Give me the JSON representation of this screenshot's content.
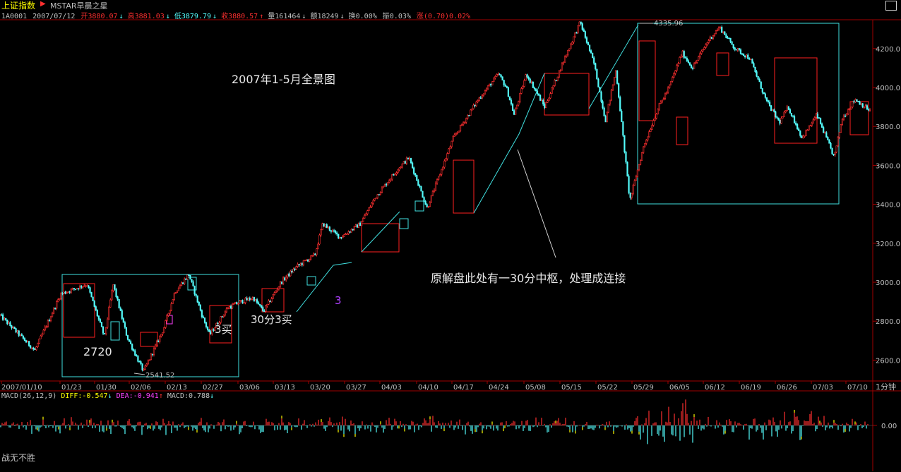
{
  "header": {
    "title": "上证指数",
    "subtitle": "MSTAR早晨之星",
    "arrow_icon": "play-right-icon"
  },
  "quote": {
    "code": "1A0001",
    "date": "2007/07/12",
    "open": "开3880.07",
    "high": "高3881.03",
    "low": "低3879.79",
    "close": "收3880.57",
    "volume": "量161464",
    "amount": "额18249",
    "turnover": "换0.00%",
    "amplitude": "振0.03%",
    "change": "涨(0.70)0.02%"
  },
  "macd_legend": {
    "name": "MACD(26,12,9)",
    "diff": "DIFF:-0.547",
    "dea": "DEA:-0.941",
    "macd": "MACD:0.788"
  },
  "footer": {
    "label": "战无不胜"
  },
  "colors": {
    "background": "#000000",
    "up": "#ff3030",
    "down": "#54fcfc",
    "axis": "#a00000",
    "box_red": "#ff2020",
    "box_cyan": "#40e0e0",
    "text": "#c0c0c0",
    "yellow": "#ffff00",
    "magenta": "#ff40ff"
  },
  "chart_data": [
    {
      "type": "candlestick-line",
      "title": "2007年1-5月全景图",
      "x_ticks": [
        "2007/01/10",
        "01/23",
        "01/30",
        "02/06",
        "02/13",
        "02/27",
        "03/06",
        "03/13",
        "03/20",
        "03/27",
        "04/03",
        "04/10",
        "04/17",
        "04/24",
        "05/08",
        "05/15",
        "05/22",
        "05/29",
        "06/05",
        "06/12",
        "06/19",
        "06/26",
        "07/03",
        "07/10"
      ],
      "x_unit_label": "1分钟",
      "y_ticks": [
        "4200.0",
        "4000.0",
        "3800.0",
        "3600.0",
        "3400.0",
        "3200.0",
        "3000.0",
        "2800.0",
        "2600.0"
      ],
      "y_tick_values": [
        4200,
        4000,
        3800,
        3600,
        3400,
        3200,
        3000,
        2800,
        2600
      ],
      "ylim": [
        2530,
        4330
      ],
      "grid": false,
      "price_path": {
        "x": [
          0,
          4,
          7,
          10,
          12,
          13,
          14.6,
          16.5,
          18.8,
          20.1,
          21.7,
          23.3,
          24.1,
          26.2,
          27.7,
          29.1,
          30.3,
          32.3,
          34.1,
          36.2,
          37.1,
          39.1,
          41.4,
          43.2,
          45.7,
          47.0,
          49.1,
          52.1,
          55.0,
          57.3,
          58.2,
          59.1,
          60.5,
          62.6,
          65.0,
          66.7,
          68.3,
          69.6,
          70.8,
          72.4,
          74.0,
          75.7,
          76.9,
          78.4,
          79.6,
          81.4,
          82.7,
          84.5,
          86.2,
          88.1,
          89.6,
          90.6,
          92.2,
          93.9,
          95.9,
          96.8,
          98.3,
          100.0
        ],
        "y": [
          2830,
          2650,
          2940,
          2990,
          2720,
          2990,
          2720,
          2541.52,
          2760,
          2950,
          3040,
          2820,
          2730,
          2870,
          2900,
          2920,
          2850,
          3000,
          3080,
          3140,
          3300,
          3230,
          3300,
          3440,
          3580,
          3640,
          3380,
          3740,
          3940,
          4070,
          4000,
          3860,
          4070,
          3900,
          4160,
          4335.96,
          4120,
          3830,
          4090,
          3420,
          3700,
          3900,
          4000,
          4180,
          4100,
          4240,
          4310,
          4200,
          4150,
          3930,
          3820,
          3900,
          3740,
          3860,
          3640,
          3840,
          3940,
          3880
        ]
      },
      "markers": [
        {
          "label": "2541.52",
          "x": 16.5,
          "y": 2541.52
        },
        {
          "label": "4335.96",
          "x": 66.7,
          "y": 4335.96
        }
      ],
      "annotations": [
        "2720",
        "3买",
        "30分3买",
        "3",
        "原解盘此处有一30分中枢，处理成连接"
      ]
    },
    {
      "type": "bar",
      "title": "MACD(26,12,9)",
      "y_ticks": [
        "0.00"
      ],
      "y_tick_values": [
        0
      ],
      "ylim": [
        -1,
        1
      ],
      "values_shown": "histogram around zero"
    }
  ]
}
